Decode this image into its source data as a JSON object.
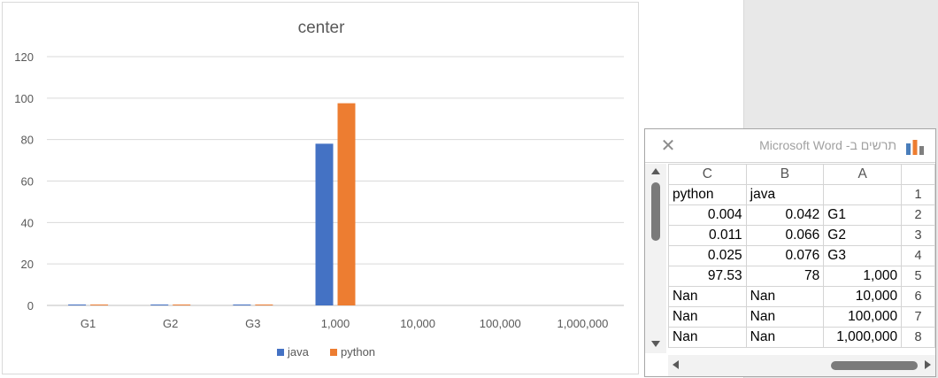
{
  "chart_data": {
    "type": "bar",
    "title": "center",
    "categories": [
      "G1",
      "G2",
      "G3",
      "1,000",
      "10,000",
      "100,000",
      "1,000,000"
    ],
    "series": [
      {
        "name": "java",
        "color": "#4472c4",
        "values": [
          0.042,
          0.066,
          0.076,
          78,
          null,
          null,
          null
        ]
      },
      {
        "name": "python",
        "color": "#ed7d31",
        "values": [
          0.004,
          0.011,
          0.025,
          97.53,
          null,
          null,
          null
        ]
      }
    ],
    "ylim": [
      0,
      120
    ],
    "yticks": [
      0,
      20,
      40,
      60,
      80,
      100,
      120
    ],
    "grid": true,
    "legend": "bottom"
  },
  "datasheet": {
    "title": "תרשים ב- Microsoft Word",
    "close_icon": "close-icon",
    "chart_icon": "chart-icon",
    "columns": [
      "C",
      "B",
      "A"
    ],
    "rows": [
      {
        "n": "1",
        "c": "python",
        "b": "java",
        "a": ""
      },
      {
        "n": "2",
        "c": "0.004",
        "b": "0.042",
        "a": "G1"
      },
      {
        "n": "3",
        "c": "0.011",
        "b": "0.066",
        "a": "G2"
      },
      {
        "n": "4",
        "c": "0.025",
        "b": "0.076",
        "a": "G3"
      },
      {
        "n": "5",
        "c": "97.53",
        "b": "78",
        "a": "1,000"
      },
      {
        "n": "6",
        "c": "Nan",
        "b": "Nan",
        "a": "10,000"
      },
      {
        "n": "7",
        "c": "Nan",
        "b": "Nan",
        "a": "100,000"
      },
      {
        "n": "8",
        "c": "Nan",
        "b": "Nan",
        "a": "1,000,000"
      }
    ]
  }
}
